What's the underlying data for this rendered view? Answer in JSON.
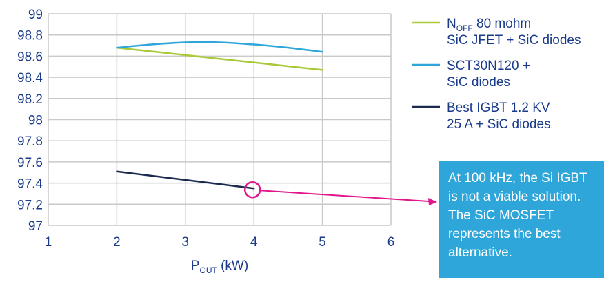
{
  "chart_data": {
    "type": "line",
    "title": "",
    "xlabel": {
      "main": "P",
      "sub": "OUT",
      "suffix": " (kW)"
    },
    "ylabel": "",
    "xlim": [
      1,
      6
    ],
    "ylim": [
      97,
      99
    ],
    "xticks": [
      1,
      2,
      3,
      4,
      5,
      6
    ],
    "yticks": [
      97,
      97.2,
      97.4,
      97.6,
      97.8,
      98,
      98.2,
      98.4,
      98.6,
      98.8,
      99
    ],
    "ytick_labels": [
      "97",
      "97.2",
      "97.4",
      "97.6",
      "97.8",
      "98",
      "98.2",
      "98.4",
      "98.6",
      "98.8",
      "99"
    ],
    "grid": "both",
    "legend_position": "right",
    "series": [
      {
        "legend_main": "N",
        "legend_sub": "OFF",
        "legend_rest": " 80 mohm",
        "legend_line2": "SiC JFET + SiC diodes",
        "color": "#a9c938",
        "x": [
          2,
          3,
          4,
          5
        ],
        "y": [
          98.68,
          98.61,
          98.54,
          98.47
        ]
      },
      {
        "legend_main": "SCT30N120 +",
        "legend_sub": "",
        "legend_rest": "",
        "legend_line2": "SiC diodes",
        "color": "#2fa6d9",
        "x": [
          2,
          2.5,
          3,
          3.5,
          4,
          4.5,
          5
        ],
        "y": [
          98.68,
          98.71,
          98.73,
          98.73,
          98.71,
          98.68,
          98.64
        ]
      },
      {
        "legend_main": "Best IGBT 1.2 KV",
        "legend_sub": "",
        "legend_rest": "",
        "legend_line2": "25 A + SiC diodes",
        "color": "#1b2a4e",
        "x": [
          2,
          4
        ],
        "y": [
          97.51,
          97.35
        ]
      }
    ],
    "annotation": {
      "marker_x": 4,
      "marker_y": 97.35,
      "marker_color": "#e2168c",
      "box_color": "#2fa6d9",
      "lines": [
        "At 100 kHz, the Si IGBT",
        "is not a viable solution.",
        "The SiC MOSFET",
        "represents the best",
        "alternative."
      ]
    }
  }
}
